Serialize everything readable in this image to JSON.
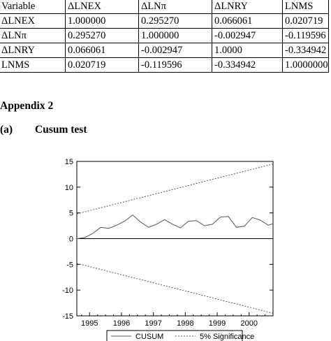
{
  "table": {
    "rows": [
      [
        "Variable",
        "ΔLNEX",
        "ΔLNπ",
        "ΔLNRY",
        "LNMS"
      ],
      [
        "ΔLNEX",
        "1.000000",
        "0.295270",
        "0.066061",
        "0.020719"
      ],
      [
        "ΔLNπ",
        "0.295270",
        "1.000000",
        "-0.002947",
        "-0.119596"
      ],
      [
        "ΔLNRY",
        "0.066061",
        "-0.002947",
        "1.0000",
        "-0.334942"
      ],
      [
        "LNMS",
        "0.020719",
        "-0.119596",
        "-0.334942",
        "1.0000000"
      ]
    ]
  },
  "appendix": {
    "heading": "Appendix 2",
    "sub_label": "(a)",
    "sub_title": "Cusum test"
  },
  "chart_data": {
    "type": "line",
    "title": "",
    "xlabel": "",
    "ylabel": "",
    "ylim": [
      -15,
      15
    ],
    "xlim": [
      1994.6,
      2000.75
    ],
    "yticks": [
      -15,
      -10,
      -5,
      0,
      5,
      10,
      15
    ],
    "xticks": [
      1995,
      1996,
      1997,
      1998,
      1999,
      2000
    ],
    "zero_line": true,
    "legend_position": "bottom-center",
    "series": [
      {
        "name": "CUSUM",
        "style": "solid",
        "color": "#555555",
        "x": [
          1994.6,
          1994.85,
          1995.1,
          1995.35,
          1995.6,
          1995.85,
          1996.1,
          1996.35,
          1996.6,
          1996.85,
          1997.1,
          1997.35,
          1997.6,
          1997.85,
          1998.1,
          1998.35,
          1998.6,
          1998.85,
          1999.1,
          1999.35,
          1999.6,
          1999.85,
          2000.1,
          2000.35,
          2000.6,
          2000.75
        ],
        "y": [
          0.0,
          0.2,
          1.0,
          2.2,
          2.0,
          2.6,
          3.4,
          4.6,
          3.2,
          2.2,
          2.8,
          3.7,
          2.8,
          2.1,
          3.4,
          3.5,
          2.5,
          2.8,
          4.2,
          4.3,
          2.2,
          2.4,
          4.1,
          3.6,
          2.6,
          2.9
        ]
      },
      {
        "name": "5% Significance",
        "style": "dashed",
        "color": "#555555",
        "x": [
          1994.6,
          2000.75
        ],
        "y": [
          4.8,
          14.5
        ]
      },
      {
        "name": "5% Significance",
        "style": "dashed",
        "color": "#555555",
        "x": [
          1994.6,
          2000.75
        ],
        "y": [
          -4.8,
          -14.5
        ]
      }
    ],
    "legend": [
      "CUSUM",
      "5% Significance"
    ]
  }
}
